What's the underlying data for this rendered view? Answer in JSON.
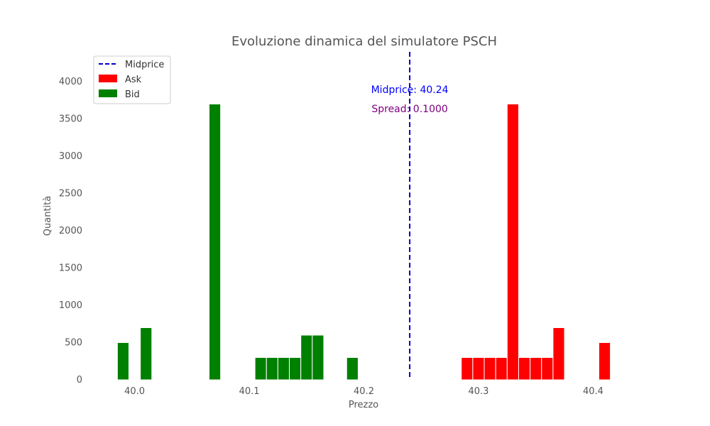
{
  "chart_data": {
    "type": "bar",
    "title": "Evoluzione dinamica del simulatore PSCH",
    "xlabel": "Prezzo",
    "ylabel": "Quantità",
    "xlim": [
      39.96,
      40.44
    ],
    "ylim": [
      0,
      4400
    ],
    "bar_width": 0.01,
    "x_ticks": [
      40.0,
      40.1,
      40.2,
      40.3,
      40.4
    ],
    "x_tick_labels": [
      "40.0",
      "40.1",
      "40.2",
      "40.3",
      "40.4"
    ],
    "y_ticks": [
      0,
      500,
      1000,
      1500,
      2000,
      2500,
      3000,
      3500,
      4000
    ],
    "y_tick_labels": [
      "0",
      "500",
      "1000",
      "1500",
      "2000",
      "2500",
      "3000",
      "3500",
      "4000"
    ],
    "grid": false,
    "legend_position": "top-left",
    "series": [
      {
        "name": "Bid",
        "color": "#008000",
        "x": [
          39.99,
          40.01,
          40.07,
          40.11,
          40.12,
          40.13,
          40.14,
          40.15,
          40.16,
          40.19
        ],
        "values": [
          500,
          700,
          3700,
          300,
          300,
          300,
          300,
          600,
          600,
          300
        ]
      },
      {
        "name": "Ask",
        "color": "#ff0000",
        "x": [
          40.29,
          40.3,
          40.31,
          40.32,
          40.33,
          40.34,
          40.35,
          40.36,
          40.37,
          40.41
        ],
        "values": [
          300,
          300,
          300,
          300,
          3700,
          300,
          300,
          300,
          700,
          500
        ]
      }
    ],
    "midprice": {
      "name": "Midprice",
      "x": 40.24,
      "color": "#0000cc",
      "style": "dashed"
    },
    "legend": [
      {
        "label": "Midprice",
        "kind": "dashed-line",
        "color": "#0000cc"
      },
      {
        "label": "Ask",
        "kind": "patch",
        "color": "#ff0000"
      },
      {
        "label": "Bid",
        "kind": "patch",
        "color": "#008000"
      }
    ],
    "annotations": [
      {
        "text": "Midprice: 40.24",
        "color": "#0000ff"
      },
      {
        "text": "Spread: 0.1000",
        "color": "#800080"
      }
    ]
  }
}
